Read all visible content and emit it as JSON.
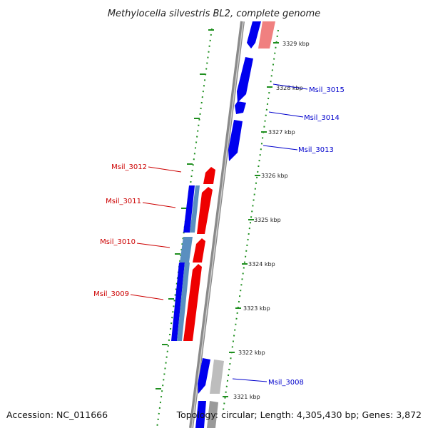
{
  "title": "Methylocella silvestris BL2, complete genome",
  "accession": "Accession: NC_011666",
  "topology": "Topology: circular; Length: 4,305,430 bp; Genes: 3,872",
  "colors": {
    "forward_strand": "#0000ee",
    "reverse_strand": "#ee0000",
    "forward_pale": "#5a8fc0",
    "reverse_pale": "#f08080",
    "other_gene": "#bdbdbd",
    "axis": "#8a8a8a",
    "ruler": "#1f8f1f",
    "forward_label": "#0000cc",
    "reverse_label": "#cc0000"
  },
  "ticks": [
    {
      "label": "3329 kbp"
    },
    {
      "label": "3328 kbp"
    },
    {
      "label": "3327 kbp"
    },
    {
      "label": "3326 kbp"
    },
    {
      "label": "3325 kbp"
    },
    {
      "label": "3324 kbp"
    },
    {
      "label": "3323 kbp"
    },
    {
      "label": "3322 kbp"
    },
    {
      "label": "3321 kbp"
    }
  ],
  "gene_labels": [
    {
      "name": "Msil_3015",
      "strand": "forward"
    },
    {
      "name": "Msil_3014",
      "strand": "forward"
    },
    {
      "name": "Msil_3013",
      "strand": "forward"
    },
    {
      "name": "Msil_3012",
      "strand": "reverse"
    },
    {
      "name": "Msil_3011",
      "strand": "reverse"
    },
    {
      "name": "Msil_3010",
      "strand": "reverse"
    },
    {
      "name": "Msil_3009",
      "strand": "reverse"
    },
    {
      "name": "Msil_3008",
      "strand": "forward"
    }
  ]
}
